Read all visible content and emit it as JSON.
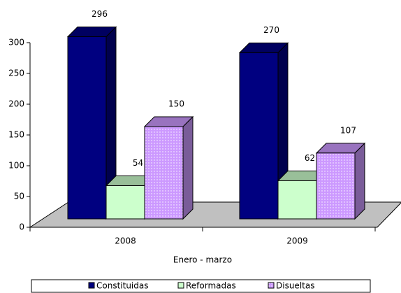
{
  "chart_data": {
    "type": "bar3d",
    "categories": [
      "2008",
      "2009"
    ],
    "series": [
      {
        "name": "Constituidas",
        "color": "#000080",
        "values": [
          296,
          270
        ]
      },
      {
        "name": "Reformadas",
        "color": "#ccffcc",
        "values": [
          54,
          62
        ]
      },
      {
        "name": "Disueltas",
        "color": "#cc99ff",
        "values": [
          150,
          107
        ]
      }
    ],
    "xlabel": "Enero - marzo",
    "ylim": [
      0,
      300
    ],
    "yticks": [
      0,
      50,
      100,
      150,
      200,
      250,
      300
    ],
    "legend": "bottom"
  }
}
